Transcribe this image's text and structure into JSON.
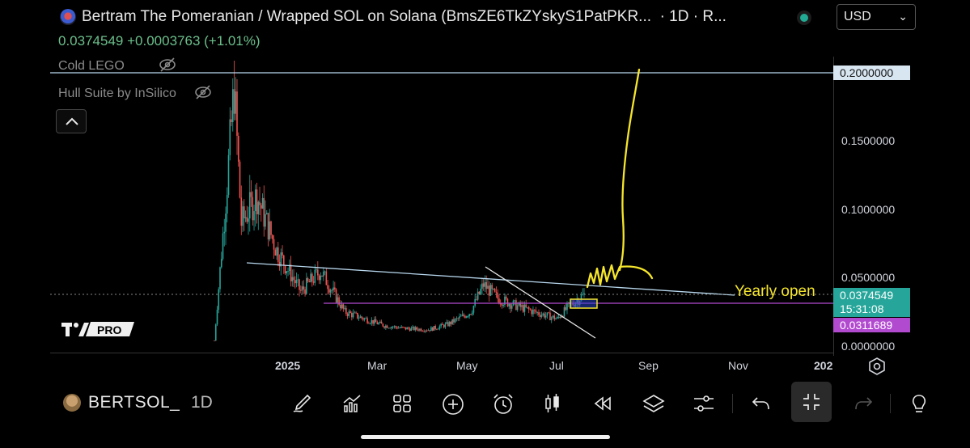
{
  "header": {
    "title": "Bertram The Pomeranian / Wrapped SOL on Solana (BmsZE6TkZYskyS1PatPKR...",
    "interval_suffix": "· 1D · R...",
    "currency": "USD",
    "price": "0.0374549",
    "change": "+0.0003763",
    "change_pct": "(+1.01%)"
  },
  "indicators": {
    "cold": "Cold LEGO",
    "hull": "Hull Suite by InSilico"
  },
  "price_axis": {
    "labels": [
      "0.2000000",
      "0.1500000",
      "0.1000000",
      "0.0500000",
      "0.0000000"
    ],
    "current_price": "0.0374549",
    "countdown": "15:31:08",
    "support_price": "0.0311689"
  },
  "time_axis": {
    "labels": [
      "2025",
      "Mar",
      "May",
      "Jul",
      "Sep",
      "Nov",
      "202"
    ]
  },
  "annotation": {
    "text": "Yearly open"
  },
  "toolbar": {
    "symbol": "BERTSOL_",
    "interval": "1D",
    "tools": [
      "brush-icon",
      "indicators-icon",
      "grid-icon",
      "add-icon",
      "alert-icon",
      "candles-icon",
      "replay-icon",
      "layers-icon",
      "settings-sliders-icon",
      "undo-icon",
      "fullscreen-exit-icon",
      "redo-icon",
      "idea-icon"
    ]
  },
  "logo": {
    "text": "PRO"
  },
  "colors": {
    "up": "#26a69a",
    "down": "#ef5350",
    "drawing": "#f5e52c",
    "trendline": "#b8d8ee",
    "support": "#b24ad0",
    "accent_tag": "#26a69a"
  },
  "chart_data": {
    "type": "line",
    "title": "",
    "x": [
      "2024-11-01",
      "2024-11-10",
      "2024-11-15",
      "2024-11-20",
      "2024-12-01",
      "2024-12-15",
      "2025-01-01",
      "2025-01-15",
      "2025-02-01",
      "2025-02-15",
      "2025-03-01",
      "2025-03-15",
      "2025-04-01",
      "2025-04-15",
      "2025-05-01",
      "2025-05-10",
      "2025-05-20",
      "2025-06-01",
      "2025-06-15",
      "2025-07-01",
      "2025-07-10",
      "2025-07-20"
    ],
    "series": [
      {
        "values": [
          0.004,
          0.12,
          0.19,
          0.09,
          0.11,
          0.07,
          0.04,
          0.055,
          0.025,
          0.02,
          0.015,
          0.013,
          0.012,
          0.016,
          0.025,
          0.045,
          0.035,
          0.03,
          0.025,
          0.02,
          0.03,
          0.0375
        ]
      }
    ],
    "ylim": [
      0,
      0.2
    ],
    "grid": false
  }
}
